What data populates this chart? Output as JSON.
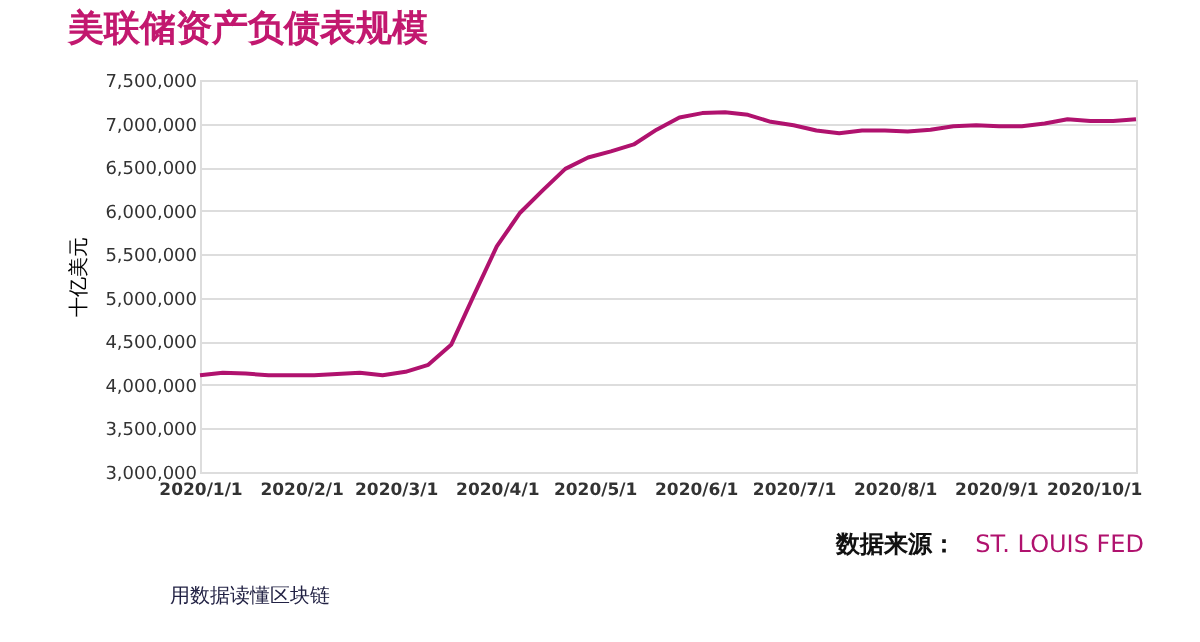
{
  "chart_data": {
    "type": "line",
    "title": "美联储资产负债表规模",
    "ylabel": "十亿美元",
    "x": [
      "2020-01-01",
      "2020-01-08",
      "2020-01-15",
      "2020-01-22",
      "2020-02-05",
      "2020-02-19",
      "2020-02-26",
      "2020-03-04",
      "2020-03-11",
      "2020-03-18",
      "2020-03-25",
      "2020-04-01",
      "2020-04-08",
      "2020-04-15",
      "2020-04-22",
      "2020-04-29",
      "2020-05-06",
      "2020-05-13",
      "2020-05-20",
      "2020-05-27",
      "2020-06-03",
      "2020-06-10",
      "2020-06-17",
      "2020-06-24",
      "2020-07-01",
      "2020-07-08",
      "2020-07-15",
      "2020-07-22",
      "2020-07-29",
      "2020-08-05",
      "2020-08-12",
      "2020-08-19",
      "2020-08-26",
      "2020-09-02",
      "2020-09-09",
      "2020-09-16",
      "2020-09-23",
      "2020-09-30",
      "2020-10-07",
      "2020-10-14"
    ],
    "series": [
      {
        "color": "#b0126e",
        "values": [
          4110000,
          4140000,
          4130000,
          4110000,
          4110000,
          4140000,
          4110000,
          4150000,
          4230000,
          4460000,
          5030000,
          5590000,
          5970000,
          6230000,
          6480000,
          6610000,
          6680000,
          6760000,
          6930000,
          7070000,
          7120000,
          7130000,
          7100000,
          7020000,
          6980000,
          6920000,
          6890000,
          6920000,
          6920000,
          6910000,
          6930000,
          6970000,
          6980000,
          6970000,
          6970000,
          7000000,
          7050000,
          7030000,
          7030000,
          7050000
        ]
      }
    ],
    "xlim": [
      "2020-01-01",
      "2020-10-14"
    ],
    "xticks": [
      {
        "value": "2020-01-01",
        "label": "2020/1/1"
      },
      {
        "value": "2020-02-01",
        "label": "2020/2/1"
      },
      {
        "value": "2020-03-01",
        "label": "2020/3/1"
      },
      {
        "value": "2020-04-01",
        "label": "2020/4/1"
      },
      {
        "value": "2020-05-01",
        "label": "2020/5/1"
      },
      {
        "value": "2020-06-01",
        "label": "2020/6/1"
      },
      {
        "value": "2020-07-01",
        "label": "2020/7/1"
      },
      {
        "value": "2020-08-01",
        "label": "2020/8/1"
      },
      {
        "value": "2020-09-01",
        "label": "2020/9/1"
      },
      {
        "value": "2020-10-01",
        "label": "2020/10/1"
      }
    ],
    "ylim": [
      3000000,
      7500000
    ],
    "yticks": [
      {
        "value": 3000000,
        "label": "3,000,000"
      },
      {
        "value": 3500000,
        "label": "3,500,000"
      },
      {
        "value": 4000000,
        "label": "4,000,000"
      },
      {
        "value": 4500000,
        "label": "4,500,000"
      },
      {
        "value": 5000000,
        "label": "5,000,000"
      },
      {
        "value": 5500000,
        "label": "5,500,000"
      },
      {
        "value": 6000000,
        "label": "6,000,000"
      },
      {
        "value": 6500000,
        "label": "6,500,000"
      },
      {
        "value": 7000000,
        "label": "7,000,000"
      },
      {
        "value": 7500000,
        "label": "7,500,000"
      }
    ],
    "grid": "y",
    "legend": false,
    "marker": "none",
    "line_style": "solid",
    "annotations": [
      "数据来源：",
      "ST. LOUIS FED",
      "用数据读懂区块链"
    ]
  }
}
